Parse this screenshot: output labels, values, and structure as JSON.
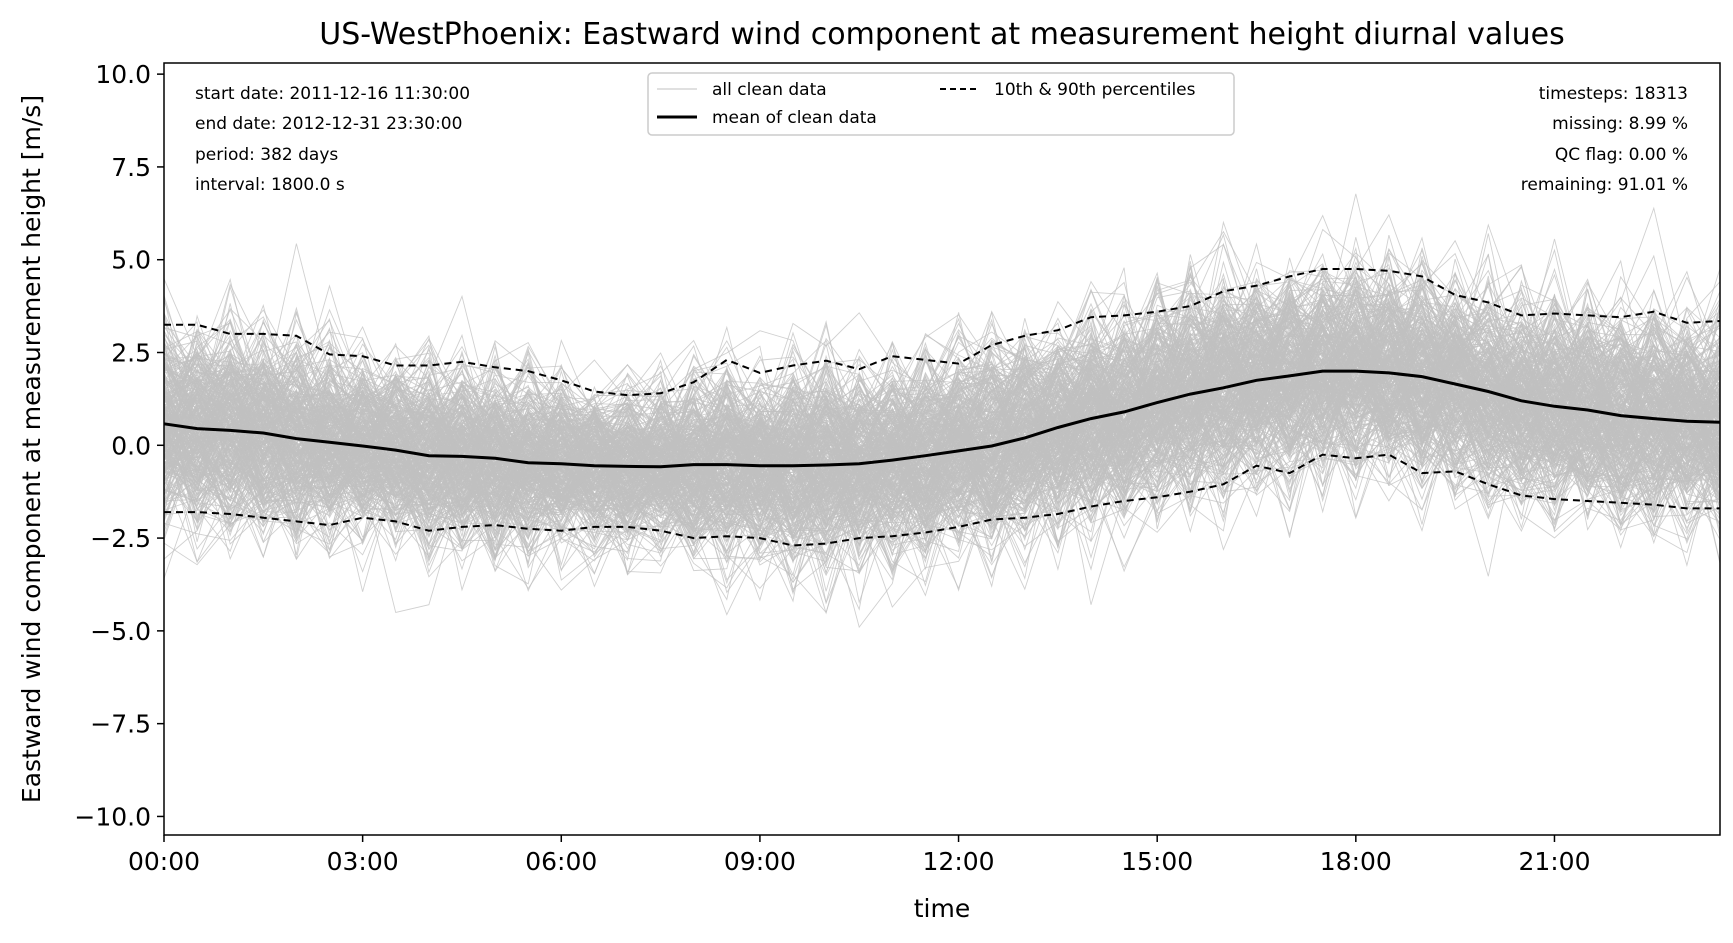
{
  "chart_data": {
    "type": "line",
    "title": "US-WestPhoenix: Eastward wind component at measurement height diurnal values",
    "xlabel": "time",
    "ylabel": "Eastward wind component at measurement height [m/s]",
    "xlim_hours": [
      0,
      23.5
    ],
    "ylim": [
      -10.5,
      10.3
    ],
    "x_ticks": [
      "00:00",
      "03:00",
      "06:00",
      "09:00",
      "12:00",
      "15:00",
      "18:00",
      "21:00"
    ],
    "y_ticks": [
      "10.0",
      "7.5",
      "5.0",
      "2.5",
      "0.0",
      "−2.5",
      "−5.0",
      "−7.5",
      "−10.0"
    ],
    "y_tick_values": [
      10.0,
      7.5,
      5.0,
      2.5,
      0.0,
      -2.5,
      -5.0,
      -7.5,
      -10.0
    ],
    "grid": false,
    "legend_position": "top-center",
    "legend": {
      "all_clean": "all clean data",
      "mean": "mean of clean data",
      "percentiles": "10th & 90th percentiles"
    },
    "stats_left": {
      "start": "start date: 2011-12-16 11:30:00",
      "end": "end date: 2012-12-31 23:30:00",
      "period": "period: 382 days",
      "interval": "interval: 1800.0 s"
    },
    "stats_right": {
      "timesteps": "timesteps: 18313",
      "missing": "missing: 8.99 %",
      "qc": "QC flag: 0.00 %",
      "remaining": "remaining: 91.01 %"
    },
    "x_hours": [
      0,
      0.5,
      1,
      1.5,
      2,
      2.5,
      3,
      3.5,
      4,
      4.5,
      5,
      5.5,
      6,
      6.5,
      7,
      7.5,
      8,
      8.5,
      9,
      9.5,
      10,
      10.5,
      11,
      11.5,
      12,
      12.5,
      13,
      13.5,
      14,
      14.5,
      15,
      15.5,
      16,
      16.5,
      17,
      17.5,
      18,
      18.5,
      19,
      19.5,
      20,
      20.5,
      21,
      21.5,
      22,
      22.5,
      23,
      23.5
    ],
    "series": [
      {
        "name": "mean of clean data",
        "color": "#000000",
        "values": [
          0.58,
          0.45,
          0.4,
          0.33,
          0.18,
          0.08,
          -0.02,
          -0.13,
          -0.28,
          -0.3,
          -0.35,
          -0.47,
          -0.5,
          -0.55,
          -0.57,
          -0.58,
          -0.52,
          -0.52,
          -0.55,
          -0.55,
          -0.53,
          -0.5,
          -0.4,
          -0.28,
          -0.15,
          -0.02,
          0.2,
          0.48,
          0.72,
          0.9,
          1.15,
          1.38,
          1.55,
          1.75,
          1.87,
          2.0,
          2.0,
          1.95,
          1.85,
          1.65,
          1.45,
          1.2,
          1.05,
          0.95,
          0.8,
          0.72,
          0.65,
          0.62
        ]
      },
      {
        "name": "90th percentile",
        "color": "#000000",
        "values": [
          3.25,
          3.25,
          3.0,
          3.0,
          2.95,
          2.45,
          2.4,
          2.15,
          2.15,
          2.25,
          2.1,
          2.0,
          1.75,
          1.45,
          1.35,
          1.4,
          1.7,
          2.3,
          1.95,
          2.15,
          2.28,
          2.05,
          2.4,
          2.3,
          2.2,
          2.7,
          2.95,
          3.1,
          3.45,
          3.5,
          3.6,
          3.75,
          4.15,
          4.3,
          4.55,
          4.75,
          4.75,
          4.7,
          4.55,
          4.05,
          3.85,
          3.5,
          3.55,
          3.5,
          3.45,
          3.6,
          3.3,
          3.35
        ]
      },
      {
        "name": "10th percentile",
        "color": "#000000",
        "values": [
          -1.8,
          -1.8,
          -1.85,
          -1.95,
          -2.05,
          -2.15,
          -1.95,
          -2.05,
          -2.3,
          -2.2,
          -2.15,
          -2.25,
          -2.3,
          -2.2,
          -2.2,
          -2.3,
          -2.5,
          -2.45,
          -2.5,
          -2.7,
          -2.65,
          -2.5,
          -2.45,
          -2.35,
          -2.2,
          -2.0,
          -1.95,
          -1.85,
          -1.65,
          -1.5,
          -1.4,
          -1.25,
          -1.05,
          -0.55,
          -0.75,
          -0.25,
          -0.35,
          -0.25,
          -0.75,
          -0.7,
          -1.05,
          -1.35,
          -1.45,
          -1.5,
          -1.55,
          -1.6,
          -1.7,
          -1.7
        ]
      }
    ],
    "clean_data_color": "#c0c0c0"
  }
}
